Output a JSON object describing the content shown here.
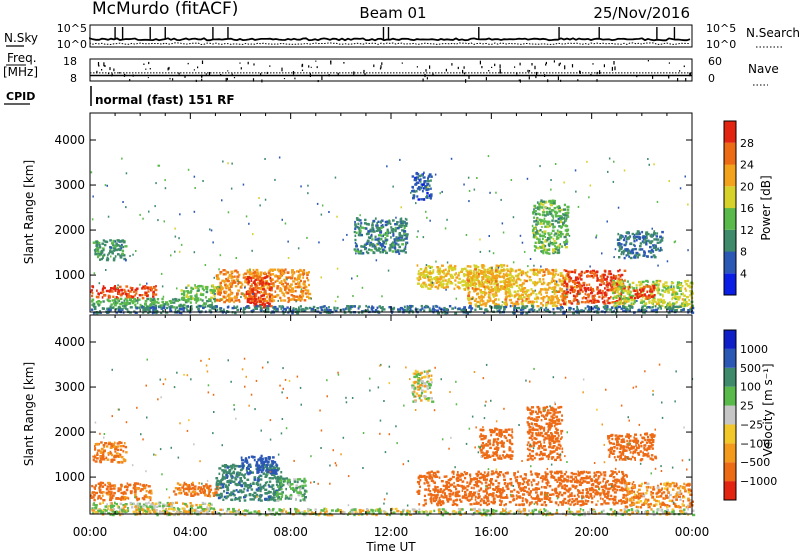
{
  "header": {
    "station": "McMurdo (fitACF)",
    "beam": "Beam 01",
    "date": "25/Nov/2016"
  },
  "params": {
    "nsky_label": "N.Sky",
    "nsearch_label": "N.Search",
    "noise_ticks": [
      "10^5",
      "10^0"
    ],
    "freq_label": "Freq.",
    "freq_unit": "[MHz]",
    "freq_ticks": [
      "18",
      "8"
    ],
    "nave_label": "Nave",
    "nave_ticks": [
      "60",
      "0"
    ],
    "cpid_label": "CPID",
    "cpid_value": "normal (fast) 151 RF"
  },
  "colors": {
    "power": [
      "#0a1ee6",
      "#2b57b5",
      "#3e8a6b",
      "#59b94a",
      "#d6d22a",
      "#f3a31b",
      "#ee6b16",
      "#e32410"
    ],
    "velocity": [
      "#e32410",
      "#ee6b16",
      "#f39a1c",
      "#f2c72a",
      "#c6c6c6",
      "#59b94a",
      "#3e8a6b",
      "#2b57b5",
      "#1020c8"
    ]
  },
  "chart_data": [
    {
      "type": "heatmap",
      "title": "Power",
      "ylabel": "Slant Range [km]",
      "xlabel": "Time UT",
      "x_range_hours": [
        0,
        24
      ],
      "ylim": [
        180,
        4600
      ],
      "xticks": [
        "00:00",
        "04:00",
        "08:00",
        "12:00",
        "16:00",
        "20:00",
        "00:00"
      ],
      "yticks": [
        "1000",
        "2000",
        "3000",
        "4000"
      ],
      "colorbar": {
        "label": "Power [dB]",
        "ticks": [
          "4",
          "8",
          "12",
          "16",
          "20",
          "24",
          "28"
        ],
        "range": [
          0,
          30
        ]
      },
      "regions": [
        {
          "t": [
            0.0,
            2.6
          ],
          "r": [
            500,
            780
          ],
          "dB": 26
        },
        {
          "t": [
            0.0,
            5.0
          ],
          "r": [
            300,
            500
          ],
          "dB": 12
        },
        {
          "t": [
            0.1,
            1.4
          ],
          "r": [
            1350,
            1800
          ],
          "dB": 10
        },
        {
          "t": [
            3.6,
            5.2
          ],
          "r": [
            480,
            800
          ],
          "dB": 14
        },
        {
          "t": [
            5.0,
            8.7
          ],
          "r": [
            420,
            1150
          ],
          "dB": 22
        },
        {
          "t": [
            6.2,
            7.2
          ],
          "r": [
            300,
            1000
          ],
          "dB": 27
        },
        {
          "t": [
            13.0,
            16.8
          ],
          "r": [
            700,
            1250
          ],
          "dB": 18
        },
        {
          "t": [
            15.0,
            19.0
          ],
          "r": [
            330,
            1150
          ],
          "dB": 20
        },
        {
          "t": [
            18.8,
            21.3
          ],
          "r": [
            380,
            1150
          ],
          "dB": 26
        },
        {
          "t": [
            20.8,
            24.0
          ],
          "r": [
            300,
            900
          ],
          "dB": 16
        },
        {
          "t": [
            21.4,
            22.5
          ],
          "r": [
            500,
            800
          ],
          "dB": 27
        },
        {
          "t": [
            10.5,
            12.6
          ],
          "r": [
            1500,
            2300
          ],
          "dB": 9
        },
        {
          "t": [
            17.6,
            19.0
          ],
          "r": [
            1500,
            2700
          ],
          "dB": 13
        },
        {
          "t": [
            21.0,
            22.8
          ],
          "r": [
            1400,
            2000
          ],
          "dB": 8
        },
        {
          "t": [
            12.8,
            13.6
          ],
          "r": [
            2700,
            3300
          ],
          "dB": 6
        },
        {
          "t": [
            0.0,
            24.0
          ],
          "r": [
            180,
            340
          ],
          "dB": 8
        }
      ]
    },
    {
      "type": "heatmap",
      "title": "Velocity",
      "ylabel": "Slant Range [km]",
      "xlabel": "Time UT",
      "x_range_hours": [
        0,
        24
      ],
      "ylim": [
        180,
        4600
      ],
      "xticks": [
        "00:00",
        "04:00",
        "08:00",
        "12:00",
        "16:00",
        "20:00",
        "00:00"
      ],
      "yticks": [
        "1000",
        "2000",
        "3000",
        "4000"
      ],
      "colorbar": {
        "label": "Velocity [m s⁻¹]",
        "ticks": [
          "1000",
          "500",
          "100",
          "25",
          "−25",
          "−100",
          "−500",
          "−1000"
        ],
        "range": [
          -1200,
          1200
        ]
      },
      "regions": [
        {
          "t": [
            0.0,
            2.4
          ],
          "r": [
            500,
            900
          ],
          "v": -150
        },
        {
          "t": [
            0.0,
            5.0
          ],
          "r": [
            200,
            460
          ],
          "v": 0
        },
        {
          "t": [
            0.1,
            1.4
          ],
          "r": [
            1350,
            1800
          ],
          "v": -120
        },
        {
          "t": [
            3.3,
            5.2
          ],
          "r": [
            600,
            900
          ],
          "v": -130
        },
        {
          "t": [
            5.0,
            7.6
          ],
          "r": [
            500,
            1300
          ],
          "v": 250
        },
        {
          "t": [
            6.0,
            7.4
          ],
          "r": [
            1100,
            1500
          ],
          "v": 600
        },
        {
          "t": [
            7.4,
            8.6
          ],
          "r": [
            500,
            1000
          ],
          "v": 80
        },
        {
          "t": [
            13.0,
            21.4
          ],
          "r": [
            400,
            1150
          ],
          "v": -280
        },
        {
          "t": [
            17.4,
            18.8
          ],
          "r": [
            1400,
            2600
          ],
          "v": -260
        },
        {
          "t": [
            15.5,
            16.8
          ],
          "r": [
            1400,
            2100
          ],
          "v": -200
        },
        {
          "t": [
            20.6,
            22.5
          ],
          "r": [
            1400,
            2000
          ],
          "v": -220
        },
        {
          "t": [
            21.3,
            24.0
          ],
          "r": [
            350,
            900
          ],
          "v": -90
        },
        {
          "t": [
            12.8,
            13.6
          ],
          "r": [
            2700,
            3400
          ],
          "v": 0
        },
        {
          "t": [
            0.0,
            24.0
          ],
          "r": [
            180,
            320
          ],
          "v": 0
        }
      ]
    }
  ],
  "noise_data": {
    "sky_level": 0.35,
    "search_level": 0.15,
    "spikes_hours": [
      1.0,
      1.3,
      2.4,
      3.0,
      4.9,
      5.5,
      11.7,
      11.9,
      15.5,
      18.7,
      20.3,
      22.6,
      23.3
    ]
  },
  "freq_data": {
    "mhz": 10.5
  },
  "nave_data": {
    "count": 22
  }
}
